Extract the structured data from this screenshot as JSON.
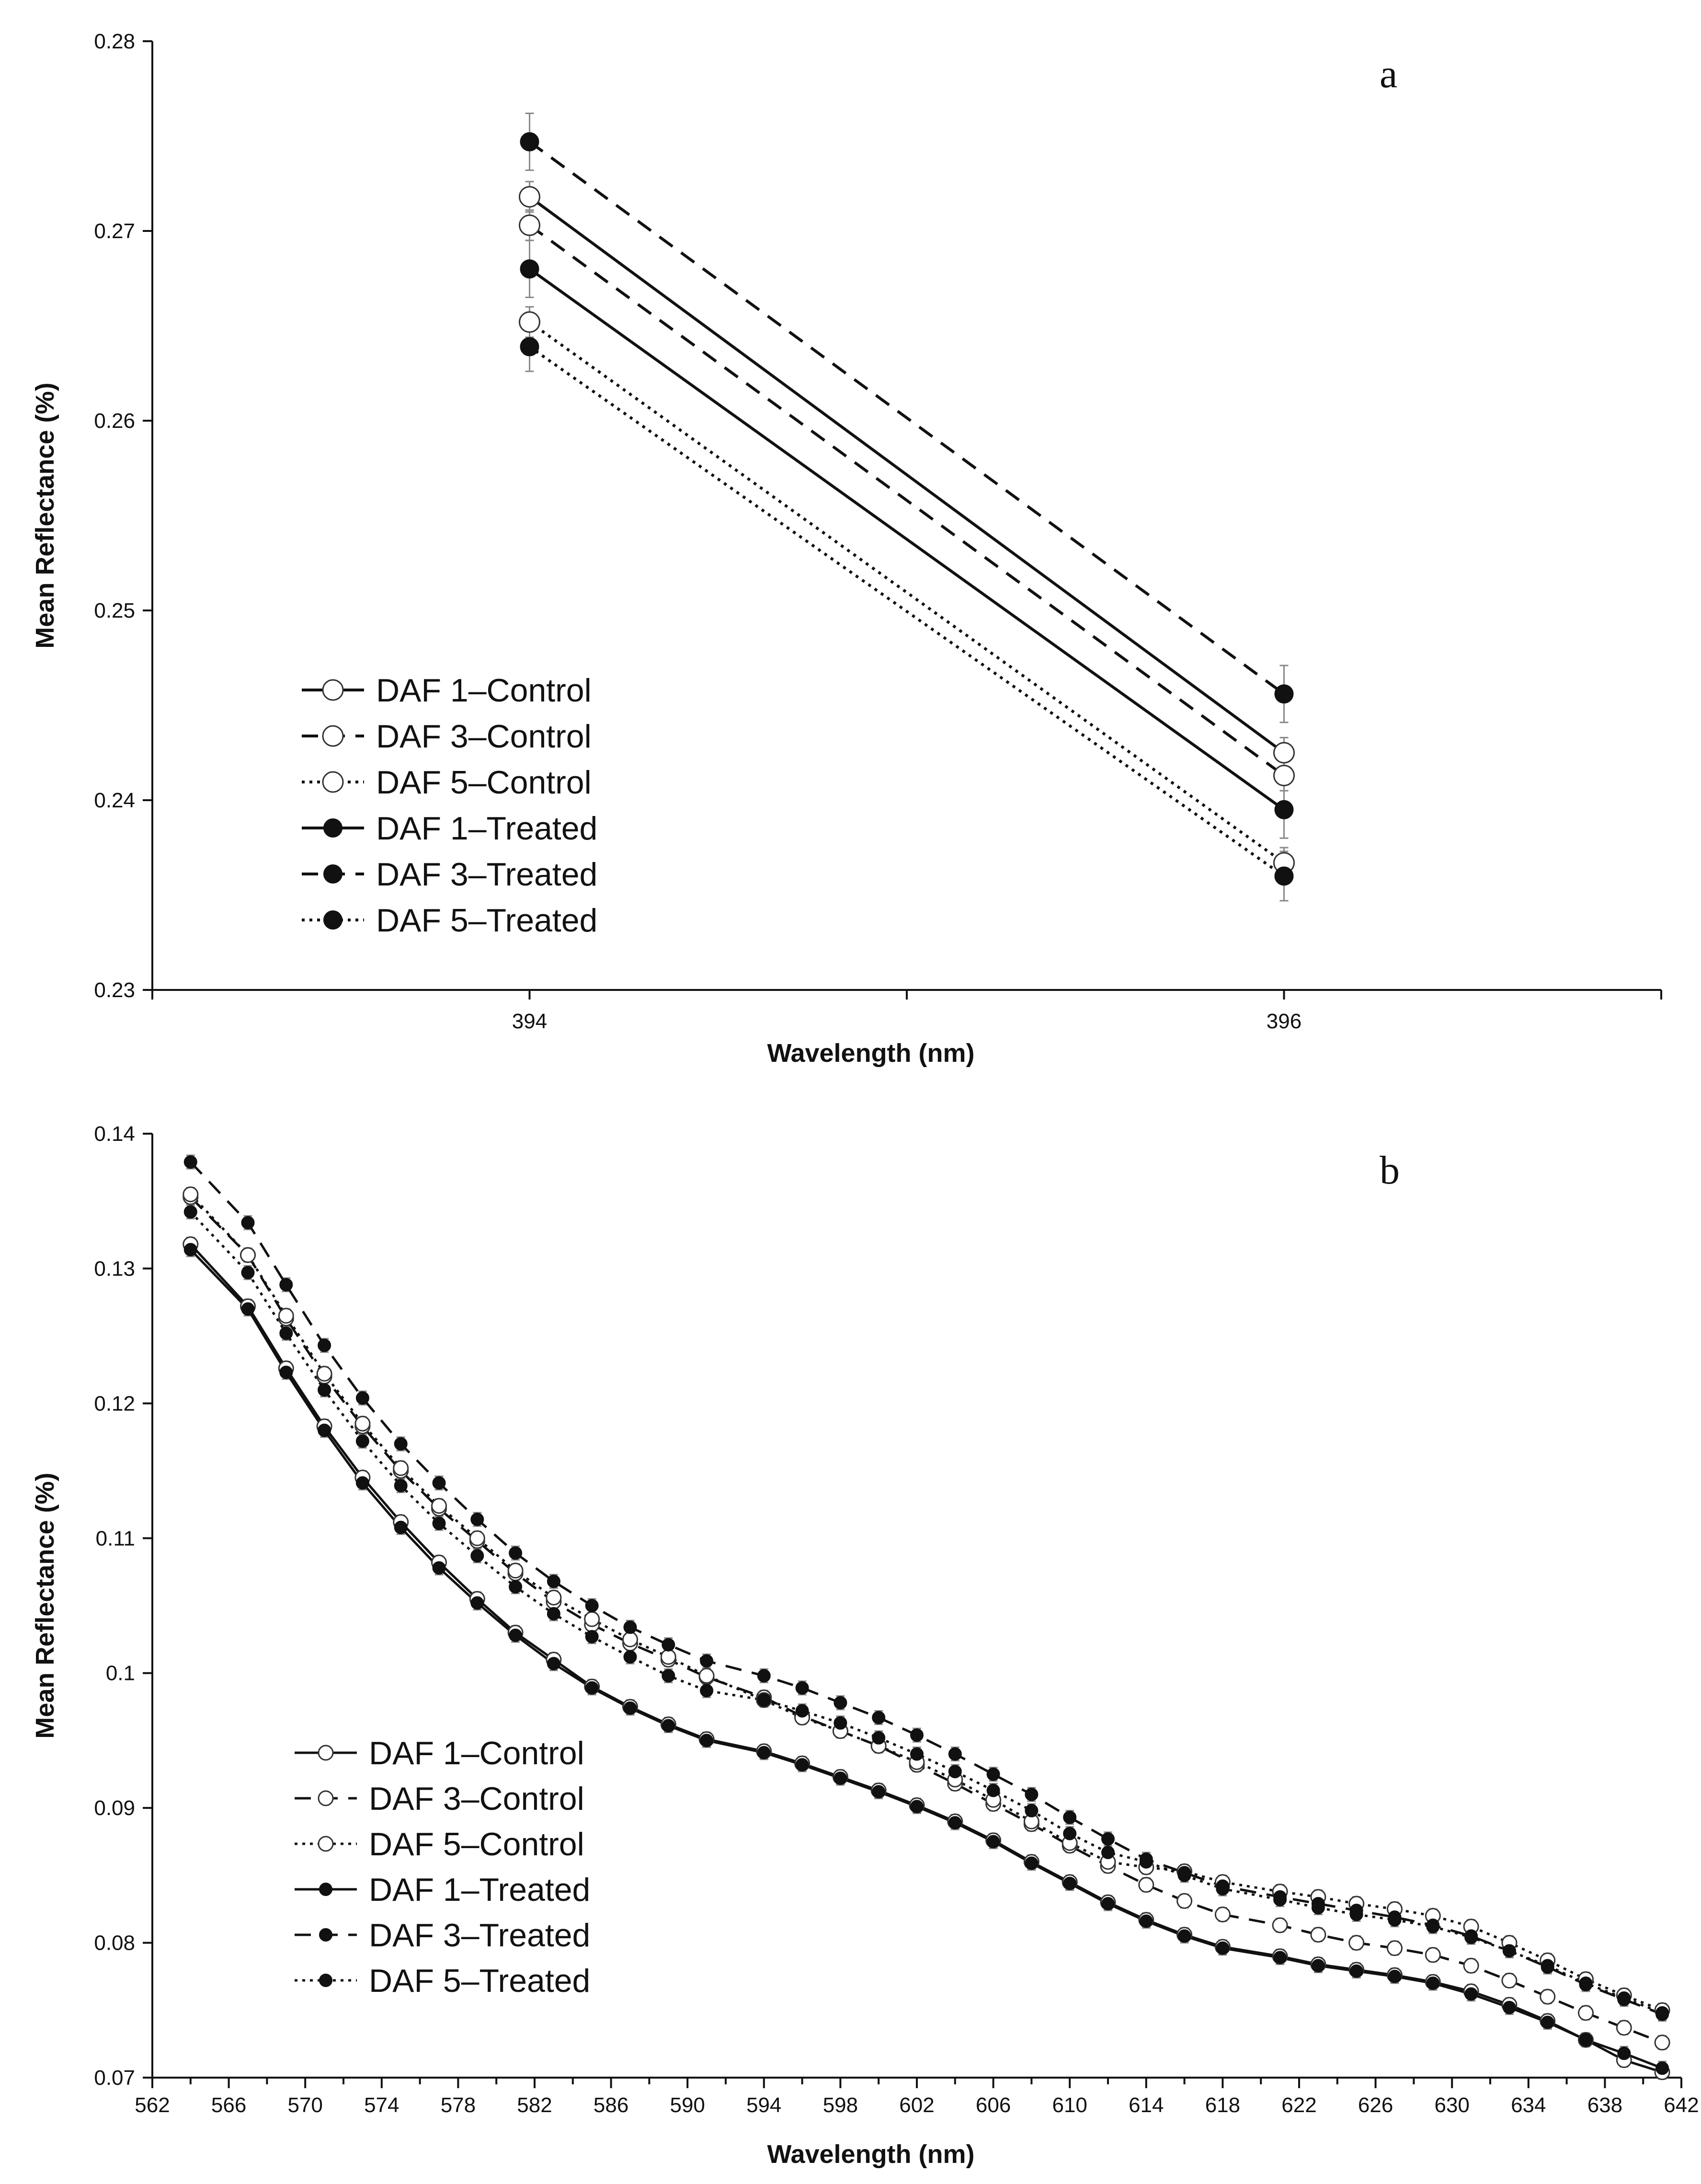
{
  "chart_data": [
    {
      "type": "line",
      "panel_label": "a",
      "xlabel": "Wavelength (nm)",
      "ylabel": "Mean Reflectance (%)",
      "x": [
        394,
        396
      ],
      "xlim": [
        393,
        397
      ],
      "ylim": [
        0.23,
        0.28
      ],
      "x_tick_labels": [
        "394",
        "396"
      ],
      "y_tick_labels": [
        "0.23",
        "0.24",
        "0.25",
        "0.26",
        "0.27",
        "0.28"
      ],
      "legend_position": "bottom-left",
      "series": [
        {
          "name": "DAF 1–Control",
          "dash": "solid",
          "marker": "open",
          "values": [
            0.2718,
            0.2425
          ],
          "errors": [
            0.0008,
            0.0008
          ]
        },
        {
          "name": "DAF 3–Control",
          "dash": "dashed",
          "marker": "open",
          "values": [
            0.2703,
            0.2413
          ],
          "errors": [
            0.0008,
            0.0008
          ]
        },
        {
          "name": "DAF 5–Control",
          "dash": "dotted",
          "marker": "open",
          "values": [
            0.2652,
            0.2367
          ],
          "errors": [
            0.0008,
            0.0008
          ]
        },
        {
          "name": "DAF 1–Treated",
          "dash": "solid",
          "marker": "filled",
          "values": [
            0.268,
            0.2395
          ],
          "errors": [
            0.0015,
            0.0015
          ]
        },
        {
          "name": "DAF 3–Treated",
          "dash": "dashed",
          "marker": "filled",
          "values": [
            0.2747,
            0.2456
          ],
          "errors": [
            0.0015,
            0.0015
          ]
        },
        {
          "name": "DAF 5–Treated",
          "dash": "dotted",
          "marker": "filled",
          "values": [
            0.2639,
            0.236
          ],
          "errors": [
            0.0013,
            0.0013
          ]
        }
      ]
    },
    {
      "type": "line",
      "panel_label": "b",
      "xlabel": "Wavelength (nm)",
      "ylabel": "Mean Reflectance (%)",
      "xlim": [
        562,
        642
      ],
      "ylim": [
        0.07,
        0.14
      ],
      "x_tick_labels": [
        "562",
        "566",
        "570",
        "574",
        "578",
        "582",
        "586",
        "590",
        "594",
        "598",
        "602",
        "606",
        "610",
        "614",
        "618",
        "622",
        "626",
        "630",
        "634",
        "638",
        "642"
      ],
      "y_tick_labels": [
        "0.07",
        "0.08",
        "0.09",
        "0.1",
        "0.11",
        "0.12",
        "0.13",
        "0.14"
      ],
      "legend_position": "bottom-left",
      "x": [
        564,
        567,
        569,
        571,
        573,
        575,
        577,
        579,
        581,
        583,
        585,
        587,
        589,
        591,
        594,
        596,
        598,
        600,
        602,
        604,
        606,
        608,
        610,
        612,
        614,
        616,
        618,
        621,
        623,
        625,
        627,
        629,
        631,
        633,
        635,
        637,
        639,
        641
      ],
      "series": [
        {
          "name": "DAF 1–Control",
          "dash": "solid",
          "marker": "open",
          "values": [
            0.1318,
            0.1272,
            0.1226,
            0.1183,
            0.1145,
            0.1112,
            0.1082,
            0.1055,
            0.103,
            0.101,
            0.099,
            0.0975,
            0.0962,
            0.0951,
            0.0942,
            0.0933,
            0.0923,
            0.0913,
            0.0902,
            0.089,
            0.0876,
            0.086,
            0.0845,
            0.083,
            0.0817,
            0.0806,
            0.0797,
            0.079,
            0.0784,
            0.078,
            0.0776,
            0.0771,
            0.0764,
            0.0754,
            0.0742,
            0.0728,
            0.0713,
            0.0704
          ]
        },
        {
          "name": "DAF 3–Control",
          "dash": "dashed",
          "marker": "open",
          "values": [
            0.1353,
            0.131,
            0.1263,
            0.122,
            0.1183,
            0.115,
            0.1122,
            0.1098,
            0.1074,
            0.1053,
            0.1036,
            0.1022,
            0.101,
            0.0997,
            0.0982,
            0.0968,
            0.0957,
            0.0946,
            0.0932,
            0.0918,
            0.0903,
            0.0888,
            0.0872,
            0.0857,
            0.0843,
            0.0831,
            0.0821,
            0.0813,
            0.0806,
            0.08,
            0.0796,
            0.0791,
            0.0783,
            0.0772,
            0.076,
            0.0748,
            0.0737,
            0.0726
          ]
        },
        {
          "name": "DAF 5–Control",
          "dash": "dotted",
          "marker": "open",
          "values": [
            0.1355,
            0.131,
            0.1265,
            0.1222,
            0.1185,
            0.1152,
            0.1124,
            0.11,
            0.1076,
            0.1056,
            0.104,
            0.1025,
            0.1012,
            0.0998,
            0.098,
            0.0967,
            0.0957,
            0.0946,
            0.0934,
            0.0921,
            0.0906,
            0.089,
            0.0874,
            0.086,
            0.0856,
            0.0853,
            0.0845,
            0.0838,
            0.0834,
            0.0829,
            0.0825,
            0.082,
            0.0812,
            0.08,
            0.0787,
            0.0773,
            0.0761,
            0.075
          ]
        },
        {
          "name": "DAF 1–Treated",
          "dash": "solid",
          "marker": "filled",
          "values": [
            0.1314,
            0.127,
            0.1223,
            0.118,
            0.1141,
            0.1108,
            0.1078,
            0.1052,
            0.1028,
            0.1007,
            0.0989,
            0.0974,
            0.0961,
            0.095,
            0.0941,
            0.0932,
            0.0922,
            0.0912,
            0.0901,
            0.0889,
            0.0875,
            0.0859,
            0.0844,
            0.0829,
            0.0816,
            0.0805,
            0.0796,
            0.0789,
            0.0783,
            0.0779,
            0.0775,
            0.077,
            0.0762,
            0.0752,
            0.0741,
            0.0728,
            0.0718,
            0.0707
          ]
        },
        {
          "name": "DAF 3–Treated",
          "dash": "dashed",
          "marker": "filled",
          "values": [
            0.1379,
            0.1334,
            0.1288,
            0.1243,
            0.1204,
            0.117,
            0.1141,
            0.1114,
            0.1089,
            0.1068,
            0.105,
            0.1034,
            0.1021,
            0.1009,
            0.0998,
            0.0989,
            0.0978,
            0.0967,
            0.0954,
            0.094,
            0.0925,
            0.091,
            0.0893,
            0.0877,
            0.0862,
            0.0852,
            0.0842,
            0.0834,
            0.0829,
            0.0824,
            0.0819,
            0.0813,
            0.0805,
            0.0794,
            0.0782,
            0.0769,
            0.0758,
            0.0747
          ]
        },
        {
          "name": "DAF 5–Treated",
          "dash": "dotted",
          "marker": "filled",
          "values": [
            0.1342,
            0.1297,
            0.1252,
            0.121,
            0.1172,
            0.1139,
            0.1111,
            0.1087,
            0.1064,
            0.1044,
            0.1027,
            0.1012,
            0.0998,
            0.0987,
            0.098,
            0.0972,
            0.0963,
            0.0952,
            0.094,
            0.0927,
            0.0913,
            0.0898,
            0.0881,
            0.0867,
            0.086,
            0.085,
            0.084,
            0.0832,
            0.0826,
            0.0821,
            0.0817,
            0.0812,
            0.0804,
            0.0794,
            0.0783,
            0.077,
            0.0759,
            0.0748
          ]
        }
      ]
    }
  ]
}
